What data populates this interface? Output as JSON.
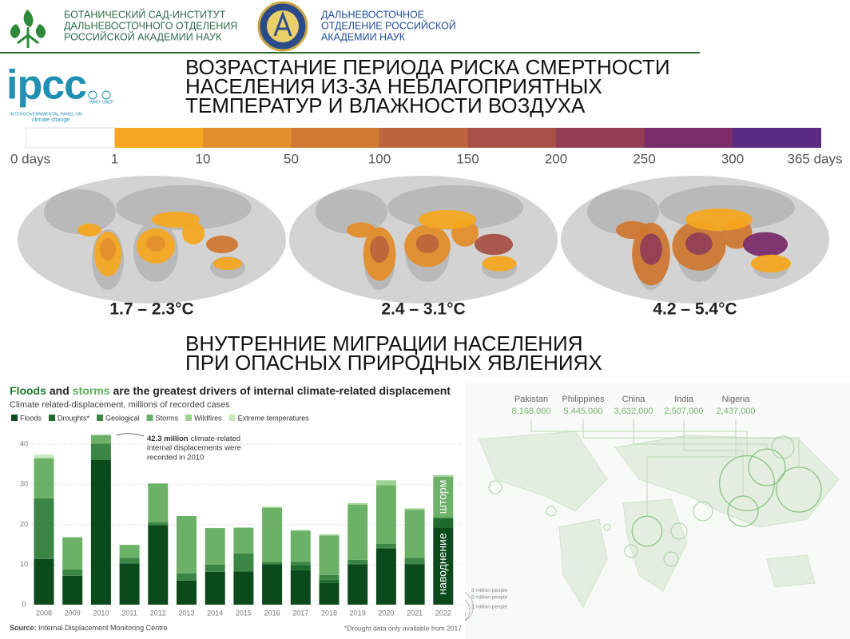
{
  "header": {
    "org1": [
      "БОТАНИЧЕСКИЙ САД-ИНСТИТУТ",
      "ДАЛЬНЕВОСТОЧНОГО ОТДЕЛЕНИЯ",
      "РОССИЙСКОЙ АКАДЕМИИ НАУК"
    ],
    "org2": [
      "ДАЛЬНЕВОСТОЧНОЕ",
      "ОТДЕЛЕНИЕ РОССИЙСКОЙ",
      "АКАДЕМИИ НАУК"
    ]
  },
  "ipcc": {
    "logo": "ipcc",
    "line1": "INTERGOVERNMENTAL PANEL ON",
    "line2": "climate change",
    "partners": [
      "WMO",
      "UNEP"
    ]
  },
  "title1": [
    "ВОЗРАСТАНИЕ ПЕРИОДА РИСКА СМЕРТНОСТИ",
    "НАСЕЛЕНИЯ ИЗ-ЗА НЕБЛАГОПРИЯТНЫХ",
    "ТЕМПЕРАТУР И ВЛАЖНОСТИ ВОЗДУХА"
  ],
  "heat_scale": {
    "labels": [
      "0 days",
      "1",
      "10",
      "50",
      "100",
      "150",
      "200",
      "250",
      "300",
      "365 days"
    ],
    "colors": [
      "#ffffff",
      "#f4a620",
      "#e38e2c",
      "#cf7832",
      "#bd643c",
      "#a85046",
      "#923f56",
      "#7a2d6a",
      "#5b2a82"
    ]
  },
  "maps": {
    "labels": [
      "1.7 – 2.3°C",
      "2.4 – 3.1°C",
      "4.2 – 5.4°C"
    ]
  },
  "title2": [
    "ВНУТРЕННИЕ МИГРАЦИИ НАСЕЛЕНИЯ",
    "ПРИ ОПАСНЫХ ПРИРОДНЫХ ЯВЛЕНИЯХ"
  ],
  "chart_data": [
    {
      "type": "stacked-bar",
      "title_parts": [
        "Floods",
        "and",
        "storms",
        "are the greatest drivers of internal climate-related displacement"
      ],
      "subtitle": "Climate related-displacement, millions of recorded cases",
      "categories": [
        "2008",
        "2009",
        "2010",
        "2011",
        "2012",
        "2013",
        "2014",
        "2015",
        "2016",
        "2017",
        "2018",
        "2019",
        "2020",
        "2021",
        "2022"
      ],
      "series": [
        {
          "name": "Floods",
          "color": "#0b4a1b",
          "values": [
            11.4,
            7.2,
            36.1,
            10.3,
            19.8,
            6,
            8.2,
            8.3,
            10.1,
            8.6,
            5.4,
            10,
            14,
            10.1,
            19.2
          ]
        },
        {
          "name": "Droughts*",
          "color": "#1f6a2d",
          "values": [
            null,
            null,
            null,
            null,
            null,
            null,
            null,
            null,
            null,
            1.3,
            0.8,
            0.3,
            0.2,
            0.2,
            2.2
          ]
        },
        {
          "name": "Geological",
          "color": "#3b8644",
          "values": [
            15.1,
            1.6,
            4,
            1.4,
            0.7,
            1.8,
            1.8,
            4.5,
            0.6,
            0.8,
            1.2,
            0.9,
            1,
            1.4,
            0.3
          ]
        },
        {
          "name": "Storms",
          "color": "#6cb168",
          "values": [
            10,
            8,
            2.2,
            3.2,
            9.7,
            14.3,
            9.1,
            6.4,
            13.4,
            7.7,
            9.8,
            13.7,
            14.6,
            11.9,
            10.2
          ]
        },
        {
          "name": "Wildfires",
          "color": "#9dd392",
          "values": [
            null,
            null,
            null,
            null,
            null,
            null,
            null,
            null,
            0.3,
            0.2,
            0.3,
            0.4,
            1.2,
            0.4,
            0.4
          ]
        },
        {
          "name": "Extreme temperatures",
          "color": "#c6e9bc",
          "values": [
            0.9,
            null,
            null,
            null,
            null,
            null,
            null,
            null,
            null,
            null,
            null,
            null,
            null,
            null,
            null
          ]
        }
      ],
      "ylim": [
        0,
        43
      ],
      "yticks": [
        0,
        10,
        20,
        30,
        40
      ],
      "grid": true,
      "annotation": [
        "42.3 million",
        "climate-related",
        "internal displacements were",
        "recorded in 2010"
      ],
      "bar_labels": [
        "шторм",
        "наводнение"
      ],
      "source_label": "Source:",
      "source": "Internal Displacement Monitoring Centre",
      "note": "*Drought data only available from 2017"
    },
    {
      "type": "bubble-map",
      "color": "#86c17f",
      "categories": [
        "Pakistan",
        "Philippines",
        "China",
        "India",
        "Nigeria"
      ],
      "values": [
        8168000,
        5445000,
        3632000,
        2507000,
        2437000
      ],
      "value_labels": [
        "8,168,000",
        "5,445,000",
        "3,632,000",
        "2,507,000",
        "2,437,000"
      ],
      "sizeticks": [
        {
          "value": 8000000,
          "label": "8 million people"
        },
        {
          "value": 5000000,
          "label": "5 million people"
        },
        {
          "value": 2000000,
          "label": "2 million people"
        }
      ]
    }
  ]
}
